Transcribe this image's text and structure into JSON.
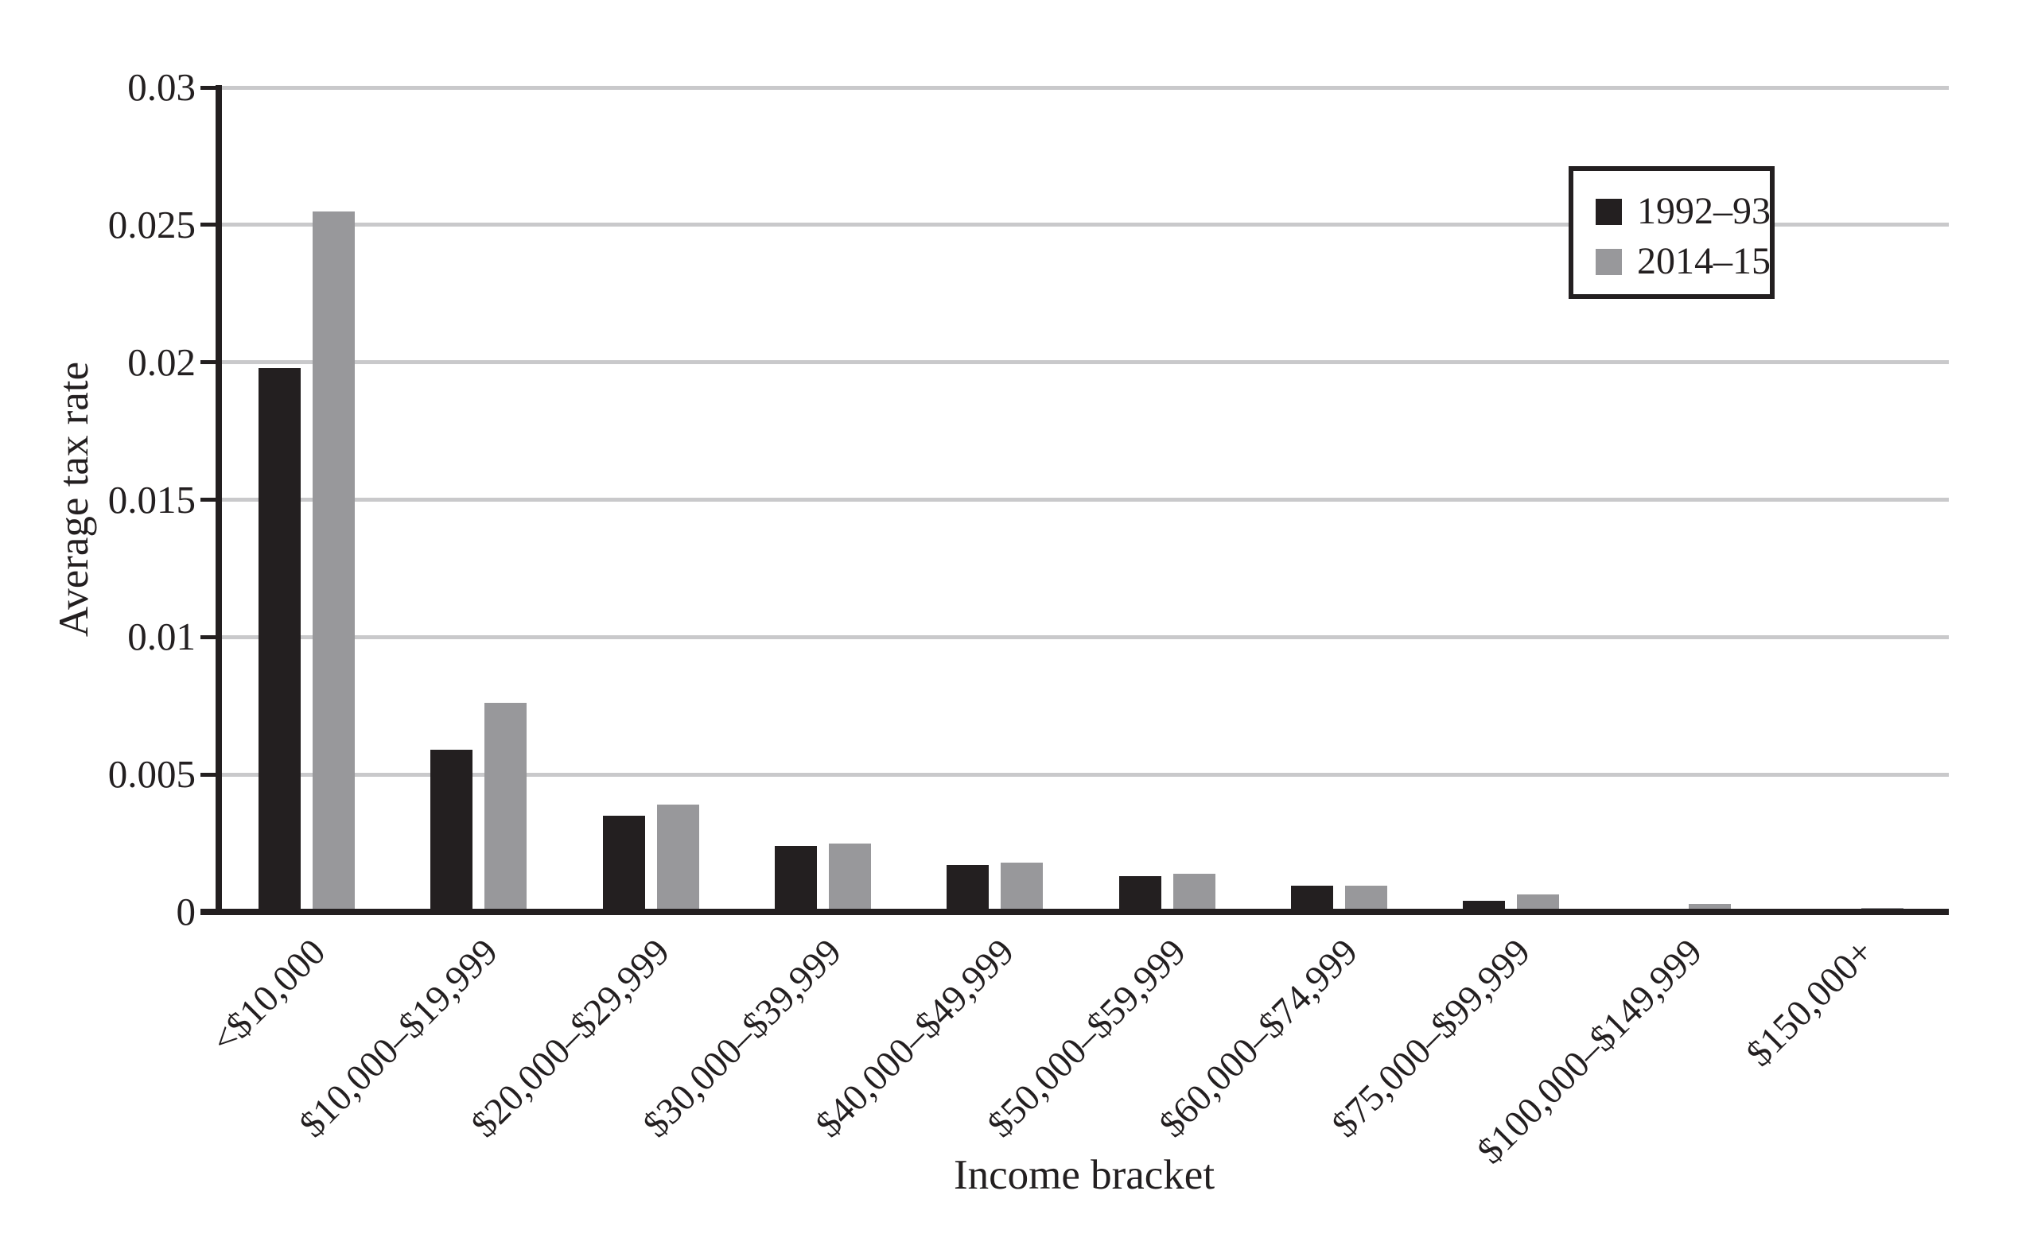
{
  "figure": {
    "background_color": "#ffffff",
    "ink_color": "#231f20",
    "gray_bar_color": "#98989b",
    "gridline_color": "#c9c9cb"
  },
  "legend": {
    "items": [
      {
        "label": "1992–93",
        "color": "#231f20"
      },
      {
        "label": "2014–15",
        "color": "#98989b"
      }
    ]
  },
  "chart_data": {
    "type": "bar",
    "title": "",
    "xlabel": "Income bracket",
    "ylabel": "Average tax rate",
    "categories": [
      "<$10,000",
      "$10,000–$19,999",
      "$20,000–$29,999",
      "$30,000–$39,999",
      "$40,000–$49,999",
      "$50,000–$59,999",
      "$60,000–$74,999",
      "$75,000–$99,999",
      "$100,000–$149,999",
      "$150,000+"
    ],
    "series": [
      {
        "name": "1992–93",
        "color": "#231f20",
        "values": [
          0.0198,
          0.0059,
          0.0035,
          0.0024,
          0.0017,
          0.0013,
          0.00095,
          0.0004,
          0,
          0
        ]
      },
      {
        "name": "2014–15",
        "color": "#98989b",
        "values": [
          0.0255,
          0.0076,
          0.0039,
          0.0025,
          0.0018,
          0.0014,
          0.00095,
          0.00065,
          0.0003,
          0.00015
        ]
      }
    ],
    "ylim": [
      0,
      0.03
    ],
    "yticks": [
      0,
      0.005,
      0.01,
      0.015,
      0.02,
      0.025,
      0.03
    ],
    "ytick_labels": [
      "0",
      "0.005",
      "0.01",
      "0.015",
      "0.02",
      "0.025",
      "0.03"
    ],
    "grid": "horizontal",
    "legend_position": "upper right"
  }
}
